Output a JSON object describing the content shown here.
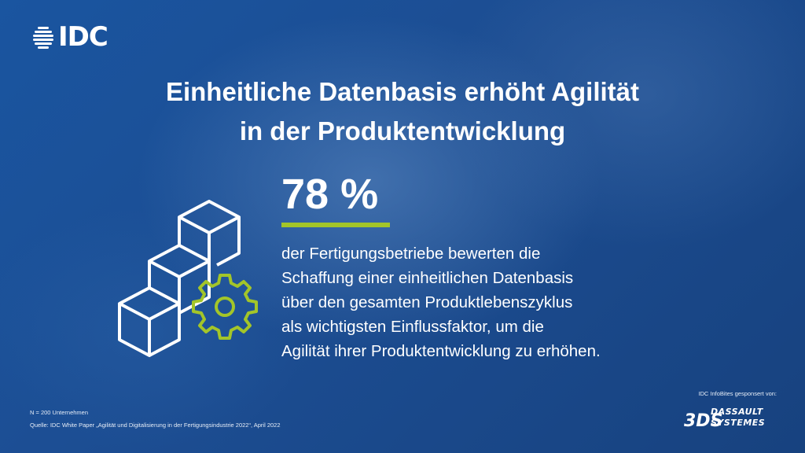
{
  "brand": {
    "logo_text": "IDC",
    "logo_icon": "globe-lines-icon"
  },
  "title": {
    "line1": "Einheitliche Datenbasis erhöht Agilität",
    "line2": "in der Produktentwicklung"
  },
  "illustration": {
    "icon": "stacked-cubes-gear-icon",
    "accent_color": "#a3c529"
  },
  "stat": {
    "value": "78 %",
    "description": [
      "der Fertigungsbetriebe bewerten die",
      "Schaffung einer einheitlichen Datenbasis",
      "über den gesamten Produktlebenszyklus",
      "als wichtigsten Einflussfaktor, um die",
      "Agilität ihrer Produktentwicklung zu erhöhen."
    ]
  },
  "footer": {
    "sample": "N = 200 Unternehmen",
    "source": "Quelle: IDC White Paper „Agilität und Digitalisierung in der Fertigungsindustrie 2022“, April 2022",
    "sponsor_label": "IDC InfoBites gesponsert von:",
    "sponsor_logo_line1": "DASSAULT",
    "sponsor_logo_line2": "SYSTEMES",
    "sponsor_mark": "3DS"
  },
  "colors": {
    "background": "#1b4f96",
    "accent": "#a3c529",
    "text": "#ffffff"
  }
}
